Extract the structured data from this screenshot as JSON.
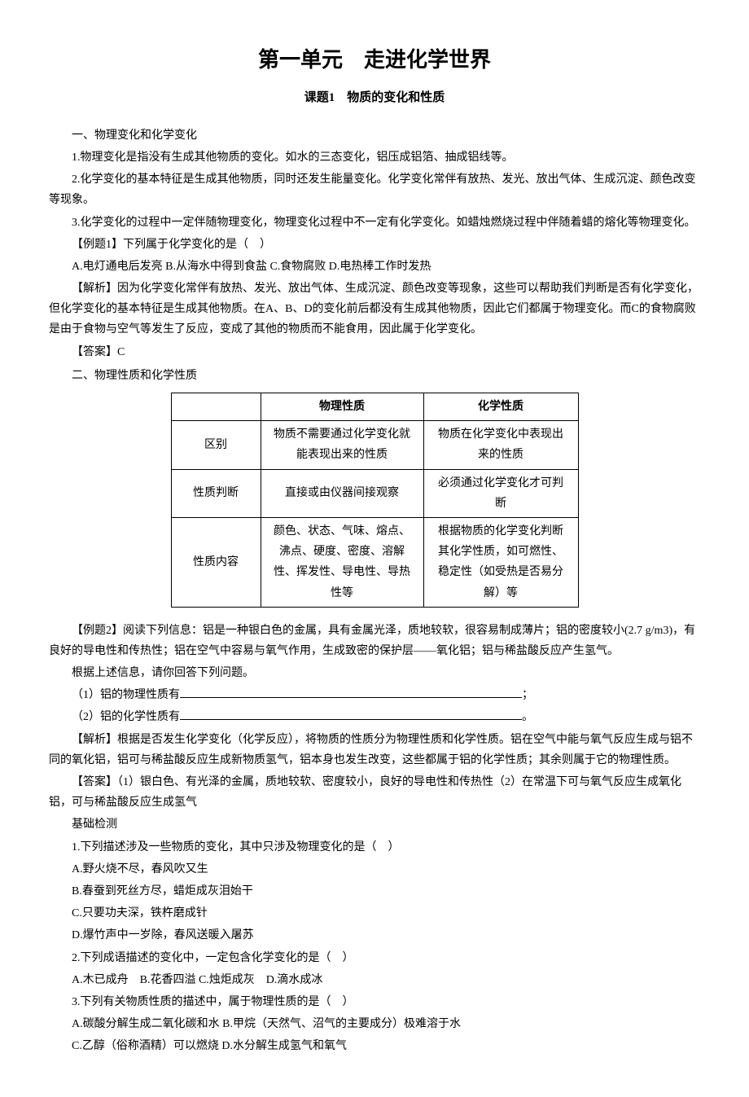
{
  "title": {
    "main": "第一单元　走进化学世界",
    "sub": "课题1　物质的变化和性质"
  },
  "s1": {
    "heading": "一、物理变化和化学变化",
    "p1": "1.物理变化是指没有生成其他物质的变化。如水的三态变化，铝压成铝箔、抽成铝线等。",
    "p2": "2.化学变化的基本特征是生成其他物质，同时还发生能量变化。化学变化常伴有放热、发光、放出气体、生成沉淀、颜色改变等现象。",
    "p3": "3.化学变化的过程中一定伴随物理变化，物理变化过程中不一定有化学变化。如蜡烛燃烧过程中伴随着蜡的熔化等物理变化。",
    "ex1": {
      "stem": "【例题1】下列属于化学变化的是（　）",
      "opts": "A.电灯通电后发亮 B.从海水中得到食盐 C.食物腐败 D.电热棒工作时发热",
      "analysis": "【解析】因为化学变化常伴有放热、发光、放出气体、生成沉淀、颜色改变等现象，这些可以帮助我们判断是否有化学变化，但化学变化的基本特征是生成其他物质。在A、B、D的变化前后都没有生成其他物质，因此它们都属于物理变化。而C的食物腐败是由于食物与空气等发生了反应，变成了其他的物质而不能食用，因此属于化学变化。",
      "answer": "【答案】C"
    }
  },
  "s2": {
    "heading": "二、物理性质和化学性质",
    "table": {
      "headers": [
        "",
        "物理性质",
        "化学性质"
      ],
      "rows": [
        {
          "label": "区别",
          "phys": "物质不需要通过化学变化就能表现出来的性质",
          "chem": "物质在化学变化中表现出来的性质"
        },
        {
          "label": "性质判断",
          "phys": "直接或由仪器间接观察",
          "chem": "必须通过化学变化才可判断"
        },
        {
          "label": "性质内容",
          "phys": "颜色、状态、气味、熔点、沸点、硬度、密度、溶解性、挥发性、导电性、导热性等",
          "chem": "根据物质的化学变化判断其化学性质，如可燃性、稳定性（如受热是否易分解）等"
        }
      ]
    },
    "ex2": {
      "stem": "【例题2】阅读下列信息：铝是一种银白色的金属，具有金属光泽，质地较软，很容易制成薄片；铝的密度较小(2.7 g/m3)，有良好的导电性和传热性；铝在空气中容易与氧气作用，生成致密的保护层——氧化铝；铝与稀盐酸反应产生氢气。",
      "prompt": "根据上述信息，请你回答下列问题。",
      "q1_label": "（1）铝的物理性质有",
      "q1_tail": "；",
      "q2_label": "（2）铝的化学性质有",
      "q2_tail": "。",
      "analysis": "【解析】根据是否发生化学变化（化学反应），将物质的性质分为物理性质和化学性质。铝在空气中能与氧气反应生成与铝不同的氧化铝，铝可与稀盐酸反应生成新物质氢气，铝本身也发生改变，这些都属于铝的化学性质；其余则属于它的物理性质。",
      "answer": "【答案】（1）银白色、有光泽的金属，质地较软、密度较小，良好的导电性和传热性（2）在常温下可与氧气反应生成氧化铝，可与稀盐酸反应生成氢气"
    }
  },
  "practice": {
    "heading": "基础检测",
    "q1": {
      "stem": "1.下列描述涉及一些物质的变化，其中只涉及物理变化的是（　）",
      "a": "A.野火烧不尽，春风吹又生",
      "b": "B.春蚕到死丝方尽，蜡炬成灰泪始干",
      "c": "C.只要功夫深，铁杵磨成针",
      "d": "D.爆竹声中一岁除，春风送暖入屠苏"
    },
    "q2": {
      "stem": "2.下列成语描述的变化中，一定包含化学变化的是（　）",
      "opts": "A.木已成舟　B.花香四溢 C.烛炬成灰　D.滴水成冰"
    },
    "q3": {
      "stem": "3.下列有关物质性质的描述中，属于物理性质的是（　）",
      "line1": "A.碳酸分解生成二氧化碳和水 B.甲烷（天然气、沼气的主要成分）极难溶于水",
      "line2": "C.乙醇（俗称酒精）可以燃烧 D.水分解生成氢气和氧气"
    }
  }
}
